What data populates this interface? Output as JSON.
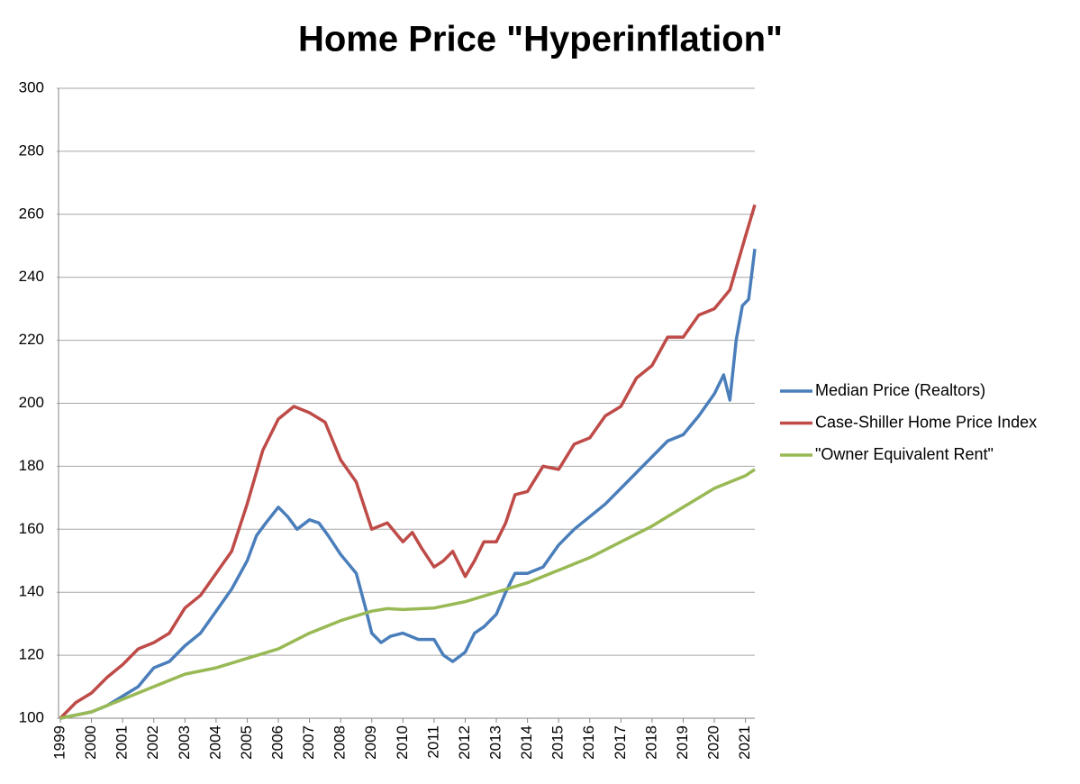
{
  "chart_data": {
    "type": "line",
    "title": "Home Price \"Hyperinflation\"",
    "xlim": [
      1999,
      2021.3
    ],
    "xticks": [
      1999,
      2000,
      2001,
      2002,
      2003,
      2004,
      2005,
      2006,
      2007,
      2008,
      2009,
      2010,
      2011,
      2012,
      2013,
      2014,
      2015,
      2016,
      2017,
      2018,
      2019,
      2020,
      2021
    ],
    "ylim": [
      100,
      300
    ],
    "yticks": [
      100,
      120,
      140,
      160,
      180,
      200,
      220,
      240,
      260,
      280,
      300
    ],
    "grid": true,
    "legend": "right",
    "series": [
      {
        "name": "Median Price (Realtors)",
        "color": "#4a7ebb",
        "x": [
          1999,
          1999.5,
          2000,
          2000.5,
          2001,
          2001.5,
          2002,
          2002.5,
          2003,
          2003.5,
          2004,
          2004.5,
          2005,
          2005.3,
          2005.6,
          2006,
          2006.3,
          2006.6,
          2007,
          2007.3,
          2007.6,
          2008,
          2008.5,
          2008.8,
          2009,
          2009.3,
          2009.6,
          2010,
          2010.5,
          2011,
          2011.3,
          2011.6,
          2012,
          2012.3,
          2012.6,
          2013,
          2013.3,
          2013.6,
          2014,
          2014.5,
          2015,
          2015.5,
          2016,
          2016.5,
          2017,
          2017.5,
          2018,
          2018.5,
          2019,
          2019.5,
          2020,
          2020.3,
          2020.5,
          2020.7,
          2020.9,
          2021.1,
          2021.3
        ],
        "values": [
          100,
          101,
          102,
          104,
          107,
          110,
          116,
          118,
          123,
          127,
          134,
          141,
          150,
          158,
          162,
          167,
          164,
          160,
          163,
          162,
          158,
          152,
          146,
          135,
          127,
          124,
          126,
          127,
          125,
          125,
          120,
          118,
          121,
          127,
          129,
          133,
          140,
          146,
          146,
          148,
          155,
          160,
          164,
          168,
          173,
          178,
          183,
          188,
          190,
          196,
          203,
          209,
          201,
          220,
          231,
          233,
          249
        ]
      },
      {
        "name": "Case-Shiller Home Price Index",
        "color": "#be4b48",
        "x": [
          1999,
          1999.5,
          2000,
          2000.5,
          2001,
          2001.5,
          2002,
          2002.5,
          2003,
          2003.5,
          2004,
          2004.5,
          2005,
          2005.5,
          2006,
          2006.5,
          2007,
          2007.5,
          2008,
          2008.5,
          2009,
          2009.5,
          2010,
          2010.3,
          2010.6,
          2011,
          2011.3,
          2011.6,
          2012,
          2012.3,
          2012.6,
          2013,
          2013.3,
          2013.6,
          2014,
          2014.5,
          2015,
          2015.5,
          2016,
          2016.5,
          2017,
          2017.5,
          2018,
          2018.5,
          2019,
          2019.5,
          2020,
          2020.5,
          2021,
          2021.3
        ],
        "values": [
          100,
          105,
          108,
          113,
          117,
          122,
          124,
          127,
          135,
          139,
          146,
          153,
          168,
          185,
          195,
          199,
          197,
          194,
          182,
          175,
          160,
          162,
          156,
          159,
          154,
          148,
          150,
          153,
          145,
          150,
          156,
          156,
          162,
          171,
          172,
          180,
          179,
          187,
          189,
          196,
          199,
          208,
          212,
          221,
          221,
          228,
          230,
          236,
          253,
          263
        ]
      },
      {
        "name": "\"Owner Equivalent Rent\"",
        "color": "#98b954",
        "x": [
          1999,
          2000,
          2001,
          2002,
          2003,
          2004,
          2005,
          2006,
          2007,
          2008,
          2009,
          2009.5,
          2010,
          2011,
          2012,
          2013,
          2014,
          2015,
          2016,
          2017,
          2018,
          2019,
          2020,
          2021,
          2021.3
        ],
        "values": [
          100,
          102,
          106,
          110,
          114,
          116,
          119,
          122,
          127,
          131,
          134,
          134.8,
          134.5,
          135,
          137,
          140,
          143,
          147,
          151,
          156,
          161,
          167,
          173,
          177,
          179
        ]
      }
    ]
  }
}
